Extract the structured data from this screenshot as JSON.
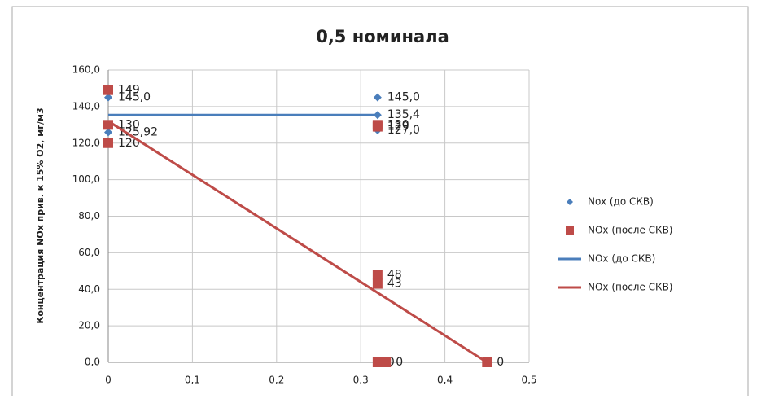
{
  "chart_data": {
    "type": "scatter",
    "title": "0,5 номинала",
    "y_label": "Концентрация NOx прив. к 15% O2, мг/м3",
    "xlim": [
      0,
      0.5
    ],
    "ylim": [
      0,
      160
    ],
    "xticks": [
      0,
      {
        "value": 0.1,
        "label": "0,1"
      },
      {
        "value": 0.2,
        "label": "0,2"
      },
      {
        "value": 0.3,
        "label": "0,3"
      },
      {
        "value": 0.4,
        "label": "0,4"
      },
      {
        "value": 0.5,
        "label": "0,5"
      }
    ],
    "yticks": [
      {
        "value": 0,
        "label": "0,0"
      },
      {
        "value": 20,
        "label": "20,0"
      },
      {
        "value": 40,
        "label": "40,0"
      },
      {
        "value": 60,
        "label": "60,0"
      },
      {
        "value": 80,
        "label": "80,0"
      },
      {
        "value": 100,
        "label": "100,0"
      },
      {
        "value": 120,
        "label": "120,0"
      },
      {
        "value": 140,
        "label": "140,0"
      },
      {
        "value": 160,
        "label": "160,0"
      }
    ],
    "grid": true,
    "legend": "right",
    "series": [
      {
        "name": "Nox (до СКВ)",
        "color": "#4a7ebb",
        "mode": "diamond",
        "x": [
          0,
          0,
          0.32,
          0.32,
          0.32
        ],
        "values": [
          145.0,
          125.92,
          145.0,
          135.4,
          127.0
        ],
        "value_labels": [
          "145,0",
          "125,92",
          "145,0",
          "135,4",
          "127,0"
        ]
      },
      {
        "name": "NOx (после СКВ)",
        "color": "#be4b48",
        "mode": "square",
        "x": [
          0,
          0,
          0,
          0.32,
          0.32,
          0.32,
          0.32,
          0.32,
          0.33,
          0.45
        ],
        "values": [
          149,
          130,
          120,
          130,
          129,
          48,
          43,
          0,
          0,
          0
        ]
      },
      {
        "name": "NOx (до СКВ)",
        "color": "#4a7ebb",
        "mode": "line",
        "x": [
          0,
          0.32
        ],
        "values": [
          135.4,
          135.4
        ]
      },
      {
        "name": "NOx (после СКВ)",
        "color": "#be4b48",
        "mode": "line",
        "x": [
          0,
          0.45
        ],
        "values": [
          132,
          0
        ]
      }
    ]
  }
}
